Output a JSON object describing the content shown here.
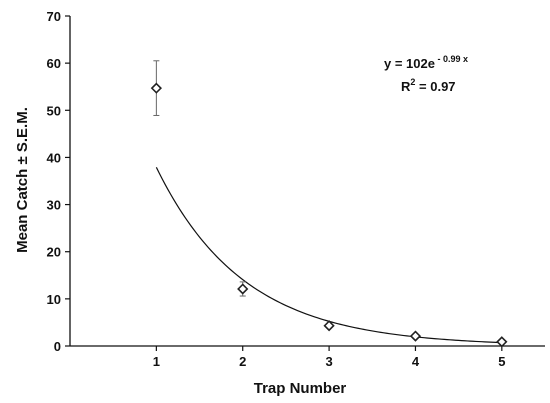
{
  "chart_data": {
    "type": "scatter",
    "xlabel": "Trap Number",
    "ylabel": "Mean Catch ± S.E.M.",
    "xlim": [
      0,
      5.5
    ],
    "ylim": [
      0,
      70
    ],
    "x_ticks": [
      1,
      2,
      3,
      4,
      5
    ],
    "y_ticks": [
      0,
      10,
      20,
      30,
      40,
      50,
      60,
      70
    ],
    "grid": false,
    "legend": "none",
    "series": [
      {
        "marker": "diamond-open",
        "x": [
          1,
          2,
          3,
          4,
          5
        ],
        "y": [
          54.7,
          12.1,
          4.3,
          2.1,
          0.9
        ],
        "sem": [
          5.8,
          1.5,
          0.4,
          0.3,
          0.2
        ]
      }
    ],
    "trendline": {
      "type": "exponential",
      "a": 102,
      "b": -0.99,
      "equation_prefix": "y = 102e",
      "equation_exponent": " - 0.99 x",
      "r2_prefix": "R",
      "r2_sup": "2",
      "r2_value": " = 0.97"
    },
    "colors": {
      "axis": "#111111",
      "marker": "#222222",
      "curve": "#111111"
    }
  }
}
